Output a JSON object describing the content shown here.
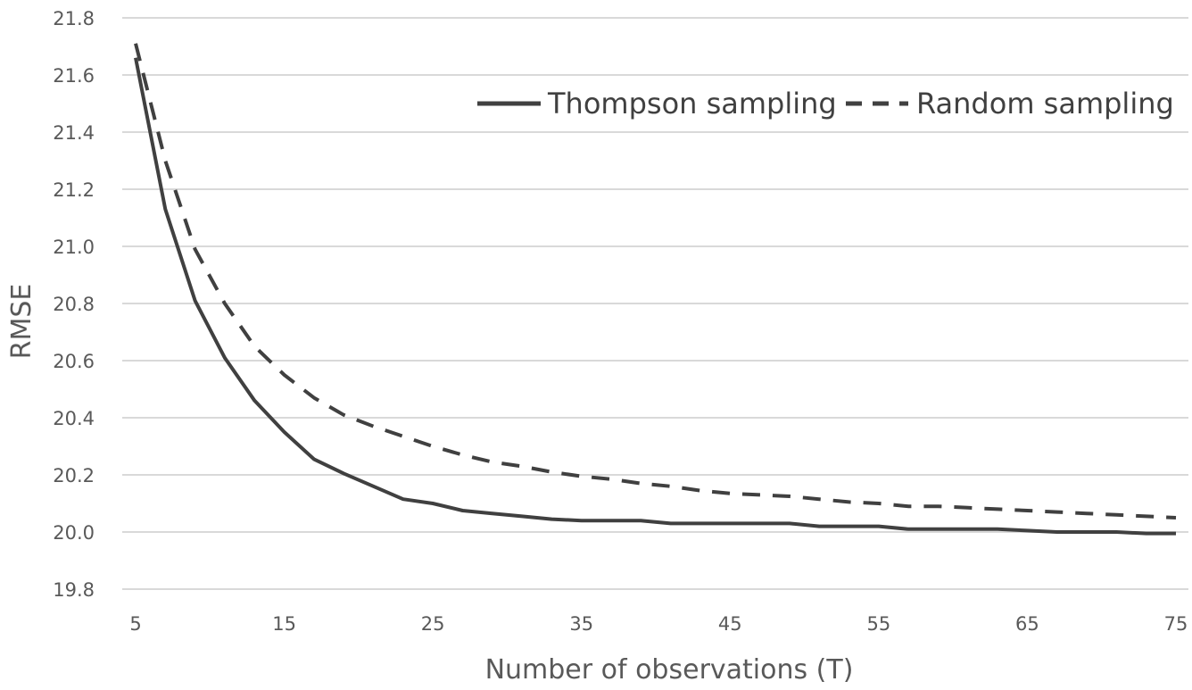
{
  "chart_data": {
    "type": "line",
    "title": "",
    "xlabel": "Number of observations (T)",
    "ylabel": "RMSE",
    "xlim": [
      5,
      75
    ],
    "ylim": [
      19.8,
      21.8
    ],
    "x_ticks": [
      5,
      15,
      25,
      35,
      45,
      55,
      65,
      75
    ],
    "y_ticks": [
      "19.8",
      "20.0",
      "20.2",
      "20.4",
      "20.6",
      "20.8",
      "21.0",
      "21.2",
      "21.4",
      "21.6",
      "21.8"
    ],
    "grid": "horizontal",
    "legend_position": "top-right",
    "x": [
      5,
      7,
      9,
      11,
      13,
      15,
      17,
      19,
      21,
      23,
      25,
      27,
      29,
      31,
      33,
      35,
      37,
      39,
      41,
      43,
      45,
      47,
      49,
      51,
      53,
      55,
      57,
      59,
      61,
      63,
      65,
      67,
      69,
      71,
      73,
      75
    ],
    "series": [
      {
        "name": "Thompson sampling",
        "style": "solid",
        "color": "#404040",
        "values": [
          21.66,
          21.13,
          20.81,
          20.61,
          20.46,
          20.35,
          20.255,
          20.205,
          20.16,
          20.115,
          20.1,
          20.075,
          20.065,
          20.055,
          20.045,
          20.04,
          20.04,
          20.04,
          20.03,
          20.03,
          20.03,
          20.03,
          20.03,
          20.02,
          20.02,
          20.02,
          20.01,
          20.01,
          20.01,
          20.01,
          20.005,
          20.0,
          20.0,
          20.0,
          19.995,
          19.995
        ]
      },
      {
        "name": "Random sampling",
        "style": "dashed",
        "color": "#404040",
        "values": [
          21.71,
          21.3,
          20.99,
          20.8,
          20.65,
          20.55,
          20.47,
          20.41,
          20.37,
          20.335,
          20.3,
          20.27,
          20.245,
          20.23,
          20.21,
          20.195,
          20.185,
          20.17,
          20.16,
          20.145,
          20.135,
          20.13,
          20.125,
          20.115,
          20.105,
          20.1,
          20.09,
          20.09,
          20.085,
          20.08,
          20.075,
          20.07,
          20.065,
          20.06,
          20.055,
          20.05
        ]
      }
    ]
  }
}
